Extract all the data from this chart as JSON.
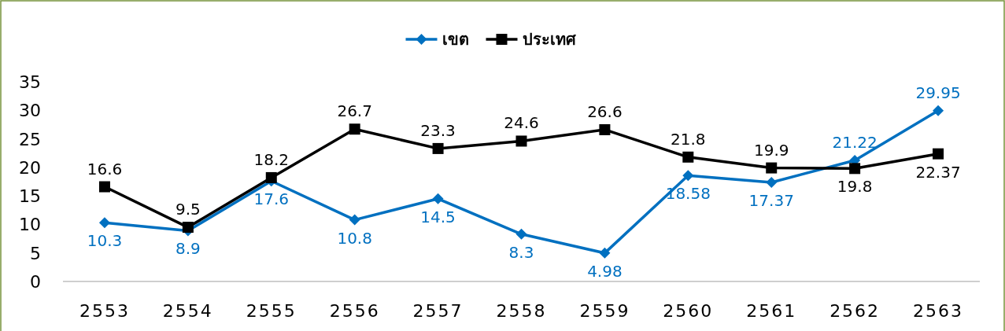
{
  "chart_data": {
    "type": "line",
    "categories": [
      "2553",
      "2554",
      "2555",
      "2556",
      "2557",
      "2558",
      "2559",
      "2560",
      "2561",
      "2562",
      "2563"
    ],
    "series": [
      {
        "name": "เขต",
        "color": "#0070c0",
        "marker": "diamond",
        "values": [
          10.3,
          8.9,
          17.6,
          10.8,
          14.5,
          8.3,
          4.98,
          18.58,
          17.37,
          21.22,
          29.95
        ]
      },
      {
        "name": "ประเทศ",
        "color": "#000000",
        "marker": "square",
        "values": [
          16.6,
          9.5,
          18.2,
          26.7,
          23.3,
          24.6,
          26.6,
          21.8,
          19.9,
          19.8,
          22.37
        ]
      }
    ],
    "ylim": [
      0,
      35
    ],
    "yticks": [
      0,
      5,
      10,
      15,
      20,
      25,
      30,
      35
    ],
    "grid": false,
    "legend": "top",
    "data_labels": true
  }
}
